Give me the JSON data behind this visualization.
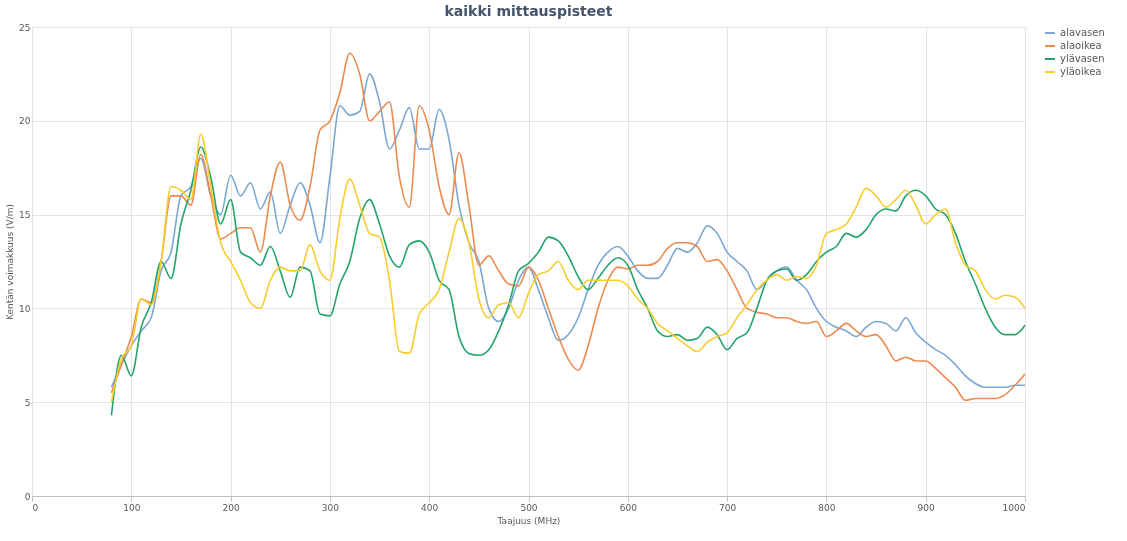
{
  "chart_data": {
    "type": "line",
    "title": "kaikki mittauspisteet",
    "xlabel": "Taajuus (MHz)",
    "ylabel": "Kentän voimakkuus (V/m)",
    "x": [
      80,
      90,
      100,
      110,
      120,
      130,
      140,
      150,
      160,
      170,
      180,
      190,
      200,
      210,
      220,
      230,
      240,
      250,
      260,
      270,
      280,
      290,
      300,
      310,
      320,
      330,
      340,
      350,
      360,
      370,
      380,
      390,
      400,
      410,
      420,
      430,
      440,
      450,
      460,
      470,
      480,
      490,
      500,
      510,
      520,
      530,
      540,
      550,
      560,
      570,
      580,
      590,
      600,
      610,
      620,
      630,
      640,
      650,
      660,
      670,
      680,
      690,
      700,
      710,
      720,
      730,
      740,
      750,
      760,
      770,
      780,
      790,
      800,
      810,
      820,
      830,
      840,
      850,
      860,
      870,
      880,
      890,
      900,
      910,
      920,
      930,
      940,
      950,
      960,
      970,
      980,
      990,
      1000
    ],
    "series": [
      {
        "name": "alavasen",
        "color": "#7ba7d4",
        "values": [
          5.8,
          7.0,
          8.0,
          8.8,
          9.5,
          12.0,
          13.0,
          16.0,
          16.5,
          18.0,
          16.0,
          15.0,
          17.1,
          16.0,
          16.7,
          15.3,
          16.2,
          14.0,
          15.5,
          16.7,
          15.5,
          13.5,
          17.0,
          20.8,
          20.3,
          20.5,
          22.5,
          21.0,
          18.5,
          19.5,
          20.7,
          18.5,
          18.5,
          20.6,
          19.0,
          15.5,
          13.5,
          12.5,
          10.0,
          9.3,
          10.0,
          11.5,
          12.2,
          11.0,
          9.5,
          8.3,
          8.6,
          9.5,
          11.0,
          12.3,
          13.0,
          13.3,
          12.8,
          12.0,
          11.6,
          11.6,
          12.3,
          13.2,
          13.0,
          13.5,
          14.4,
          14.0,
          13.0,
          12.5,
          12.0,
          11.0,
          11.5,
          12.0,
          12.2,
          11.5,
          11.0,
          10.0,
          9.3,
          9.0,
          8.8,
          8.5,
          9.0,
          9.3,
          9.2,
          8.8,
          9.5,
          8.7,
          8.2,
          7.8,
          7.5,
          7.0,
          6.4,
          6.0,
          5.8,
          5.8,
          5.8,
          5.9,
          5.9
        ]
      },
      {
        "name": "alaoikea",
        "color": "#ed8a4f",
        "values": [
          5.5,
          7.0,
          8.5,
          10.5,
          10.3,
          12.5,
          16.0,
          16.0,
          15.5,
          18.2,
          16.0,
          13.7,
          14.0,
          14.3,
          14.3,
          13.0,
          16.0,
          17.8,
          15.5,
          14.7,
          16.5,
          19.5,
          20.0,
          21.5,
          23.6,
          22.5,
          20.0,
          20.5,
          21.0,
          17.0,
          15.4,
          20.8,
          19.5,
          16.5,
          15.0,
          18.3,
          15.5,
          12.3,
          12.8,
          12.0,
          11.3,
          11.2,
          12.2,
          11.5,
          10.0,
          8.5,
          7.3,
          6.7,
          8.0,
          10.0,
          11.5,
          12.2,
          12.1,
          12.3,
          12.3,
          12.5,
          13.2,
          13.5,
          13.5,
          13.3,
          12.5,
          12.6,
          12.0,
          11.0,
          10.0,
          9.8,
          9.7,
          9.5,
          9.5,
          9.3,
          9.2,
          9.3,
          8.5,
          8.8,
          9.2,
          8.8,
          8.5,
          8.6,
          8.0,
          7.2,
          7.4,
          7.2,
          7.2,
          6.8,
          6.3,
          5.8,
          5.1,
          5.2,
          5.2,
          5.2,
          5.4,
          5.9,
          6.5
        ]
      },
      {
        "name": "ylävasen",
        "color": "#22a46a",
        "values": [
          4.3,
          7.5,
          6.4,
          9.0,
          10.3,
          12.5,
          11.6,
          14.5,
          16.3,
          18.6,
          17.0,
          14.5,
          15.8,
          13.0,
          12.7,
          12.3,
          13.3,
          12.0,
          10.6,
          12.2,
          12.0,
          9.7,
          9.6,
          11.3,
          12.5,
          14.8,
          15.8,
          14.5,
          12.8,
          12.2,
          13.4,
          13.6,
          13.0,
          11.5,
          11.0,
          8.5,
          7.6,
          7.5,
          7.8,
          8.8,
          10.2,
          12.0,
          12.4,
          13.0,
          13.8,
          13.6,
          12.8,
          11.7,
          11.0,
          11.6,
          12.3,
          12.7,
          12.3,
          11.0,
          10.0,
          8.8,
          8.5,
          8.6,
          8.3,
          8.4,
          9.0,
          8.6,
          7.8,
          8.4,
          8.7,
          10.0,
          11.5,
          12.0,
          12.1,
          11.5,
          11.8,
          12.5,
          13.0,
          13.3,
          14.0,
          13.8,
          14.2,
          15.0,
          15.3,
          15.2,
          16.0,
          16.3,
          16.0,
          15.3,
          15.0,
          14.0,
          12.5,
          11.3,
          10.0,
          9.0,
          8.6,
          8.6,
          9.1
        ]
      },
      {
        "name": "yläoikea",
        "color": "#f6cd2f",
        "values": [
          5.0,
          7.3,
          8.0,
          10.5,
          10.2,
          12.5,
          16.5,
          16.3,
          15.8,
          19.3,
          16.5,
          13.5,
          12.5,
          11.5,
          10.3,
          10.0,
          11.5,
          12.2,
          12.0,
          12.0,
          13.4,
          12.0,
          11.5,
          14.8,
          16.9,
          15.5,
          14.0,
          13.8,
          11.5,
          7.7,
          7.6,
          9.7,
          10.3,
          11.0,
          13.0,
          14.8,
          13.5,
          10.5,
          9.5,
          10.2,
          10.3,
          9.5,
          10.8,
          11.8,
          12.0,
          12.5,
          11.5,
          11.0,
          11.5,
          11.5,
          11.5,
          11.5,
          11.2,
          10.5,
          10.0,
          9.2,
          8.8,
          8.4,
          8.0,
          7.7,
          8.2,
          8.5,
          8.7,
          9.5,
          10.2,
          11.0,
          11.5,
          11.8,
          11.5,
          11.7,
          11.6,
          12.3,
          14.0,
          14.2,
          14.5,
          15.4,
          16.4,
          16.0,
          15.4,
          15.8,
          16.3,
          15.5,
          14.5,
          15.0,
          15.3,
          13.5,
          12.3,
          12.0,
          11.0,
          10.5,
          10.7,
          10.6,
          10.0
        ]
      }
    ],
    "xlim": [
      0,
      1000
    ],
    "xticks": [
      0,
      100,
      200,
      300,
      400,
      500,
      600,
      700,
      800,
      900,
      1000
    ],
    "ylim": [
      0,
      25
    ],
    "yticks": [
      0,
      5,
      10,
      15,
      20,
      25
    ],
    "grid": true,
    "legend": "right",
    "marker": "none",
    "line_style": "solid"
  }
}
